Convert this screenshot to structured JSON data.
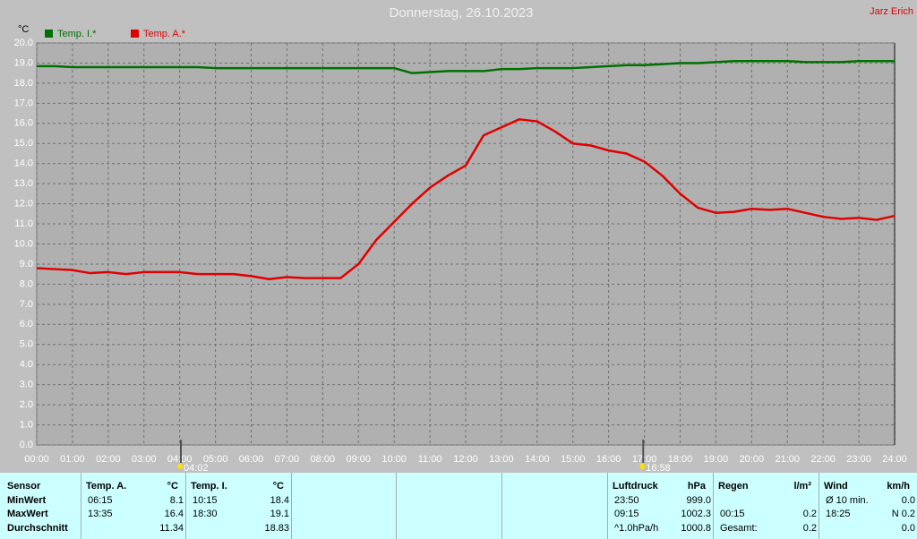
{
  "chart_data": {
    "type": "line",
    "title": "Donnerstag, 26.10.2023",
    "author": "Jarz Erich",
    "y_label": "°C",
    "x": [
      0,
      0.5,
      1,
      1.5,
      2,
      2.5,
      3,
      3.5,
      4,
      4.5,
      5,
      5.5,
      6,
      6.5,
      7,
      7.5,
      8,
      8.5,
      9,
      9.5,
      10,
      10.5,
      11,
      11.5,
      12,
      12.5,
      13,
      13.5,
      14,
      14.5,
      15,
      15.5,
      16,
      16.5,
      17,
      17.5,
      18,
      18.5,
      19,
      19.5,
      20,
      20.5,
      21,
      21.5,
      22,
      22.5,
      23,
      23.5,
      24
    ],
    "series": [
      {
        "name": "Temp. I.*",
        "color": "#007000",
        "values": [
          18.85,
          18.85,
          18.8,
          18.8,
          18.8,
          18.8,
          18.8,
          18.8,
          18.8,
          18.8,
          18.75,
          18.75,
          18.75,
          18.75,
          18.75,
          18.75,
          18.75,
          18.75,
          18.75,
          18.75,
          18.75,
          18.5,
          18.55,
          18.6,
          18.6,
          18.6,
          18.7,
          18.7,
          18.75,
          18.75,
          18.75,
          18.8,
          18.85,
          18.9,
          18.9,
          18.95,
          19.0,
          19.0,
          19.05,
          19.1,
          19.1,
          19.1,
          19.1,
          19.05,
          19.05,
          19.05,
          19.1,
          19.1,
          19.1
        ]
      },
      {
        "name": "Temp. A.*",
        "color": "#e00000",
        "values": [
          8.8,
          8.75,
          8.7,
          8.55,
          8.6,
          8.5,
          8.6,
          8.6,
          8.6,
          8.5,
          8.5,
          8.5,
          8.4,
          8.25,
          8.35,
          8.3,
          8.3,
          8.3,
          9.0,
          10.2,
          11.1,
          12.0,
          12.8,
          13.4,
          13.9,
          15.4,
          15.8,
          16.2,
          16.1,
          15.6,
          15.0,
          14.9,
          14.65,
          14.5,
          14.1,
          13.4,
          12.5,
          11.8,
          11.55,
          11.6,
          11.75,
          11.7,
          11.75,
          11.55,
          11.35,
          11.25,
          11.3,
          11.2,
          11.4
        ]
      }
    ],
    "xlim": [
      0,
      24
    ],
    "ylim": [
      0,
      20
    ],
    "xticks": [
      {
        "value": 0,
        "label": "00:00"
      },
      {
        "value": 1,
        "label": "01:00"
      },
      {
        "value": 2,
        "label": "02:00"
      },
      {
        "value": 3,
        "label": "03:00"
      },
      {
        "value": 4,
        "label": "04:00"
      },
      {
        "value": 5,
        "label": "05:00"
      },
      {
        "value": 6,
        "label": "06:00"
      },
      {
        "value": 7,
        "label": "07:00"
      },
      {
        "value": 8,
        "label": "08:00"
      },
      {
        "value": 9,
        "label": "09:00"
      },
      {
        "value": 10,
        "label": "10:00"
      },
      {
        "value": 11,
        "label": "11:00"
      },
      {
        "value": 12,
        "label": "12:00"
      },
      {
        "value": 13,
        "label": "13:00"
      },
      {
        "value": 14,
        "label": "14:00"
      },
      {
        "value": 15,
        "label": "15:00"
      },
      {
        "value": 16,
        "label": "16:00"
      },
      {
        "value": 17,
        "label": "17:00"
      },
      {
        "value": 18,
        "label": "18:00"
      },
      {
        "value": 19,
        "label": "19:00"
      },
      {
        "value": 20,
        "label": "20:00"
      },
      {
        "value": 21,
        "label": "21:00"
      },
      {
        "value": 22,
        "label": "22:00"
      },
      {
        "value": 23,
        "label": "23:00"
      },
      {
        "value": 24,
        "label": "24:00"
      }
    ],
    "yticks": [
      {
        "value": 0,
        "label": "0.0"
      },
      {
        "value": 1,
        "label": "1.0"
      },
      {
        "value": 2,
        "label": "2.0"
      },
      {
        "value": 3,
        "label": "3.0"
      },
      {
        "value": 4,
        "label": "4.0"
      },
      {
        "value": 5,
        "label": "5.0"
      },
      {
        "value": 6,
        "label": "6.0"
      },
      {
        "value": 7,
        "label": "7.0"
      },
      {
        "value": 8,
        "label": "8.0"
      },
      {
        "value": 9,
        "label": "9.0"
      },
      {
        "value": 10,
        "label": "10.0"
      },
      {
        "value": 11,
        "label": "11.0"
      },
      {
        "value": 12,
        "label": "12.0"
      },
      {
        "value": 13,
        "label": "13.0"
      },
      {
        "value": 14,
        "label": "14.0"
      },
      {
        "value": 15,
        "label": "15.0"
      },
      {
        "value": 16,
        "label": "16.0"
      },
      {
        "value": 17,
        "label": "17.0"
      },
      {
        "value": 18,
        "label": "18.0"
      },
      {
        "value": 19,
        "label": "19.0"
      },
      {
        "value": 20,
        "label": "20.0"
      }
    ],
    "grid": true,
    "markers": [
      {
        "value": 4.033,
        "label": "04:02"
      },
      {
        "value": 16.967,
        "label": "16:58"
      }
    ]
  },
  "table": {
    "row_header": "Sensor",
    "row_labels": [
      "MinWert",
      "MaxWert",
      "Durchschnitt"
    ],
    "groups": [
      {
        "title": "Temp. A.",
        "unit": "°C",
        "rows": [
          [
            "06:15",
            "8.1"
          ],
          [
            "13:35",
            "16.4"
          ],
          [
            null,
            "11.34"
          ]
        ]
      },
      {
        "title": "Temp. I.",
        "unit": "°C",
        "rows": [
          [
            "10:15",
            "18.4"
          ],
          [
            "18:30",
            "19.1"
          ],
          [
            null,
            "18.83"
          ]
        ]
      },
      {
        "title": "Luftdruck",
        "unit": "hPa",
        "rows": [
          [
            "23:50",
            "999.0"
          ],
          [
            "09:15",
            "1002.3"
          ],
          [
            "^1.0hPa/h",
            "1000.8"
          ]
        ]
      },
      {
        "title": "Regen",
        "unit": "l/m²",
        "rows": [
          [
            null,
            null
          ],
          [
            "00:15",
            "0.2"
          ],
          [
            "Gesamt:",
            "0.2"
          ]
        ]
      },
      {
        "title": "Wind",
        "unit": "km/h",
        "rows": [
          [
            "Ø 10 min.",
            "0.0"
          ],
          [
            "18:25",
            "N 0.2"
          ],
          [
            null,
            "0.0"
          ]
        ]
      }
    ]
  }
}
